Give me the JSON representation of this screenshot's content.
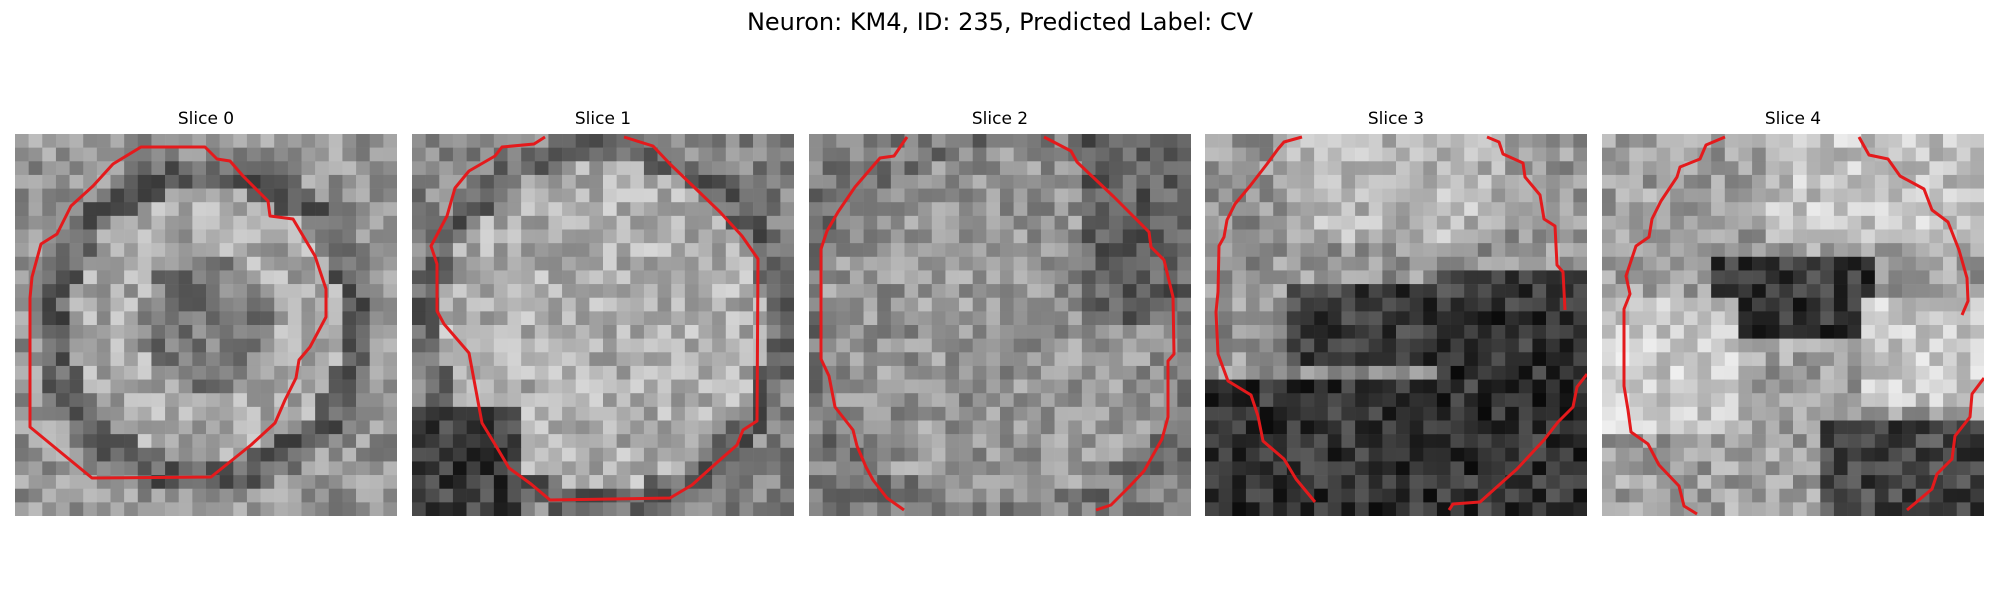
{
  "figure": {
    "title": "Neuron: KM4, ID: 235, Predicted Label: CV"
  },
  "slices": [
    {
      "title": "Slice 0",
      "contour_color": "#e41a1c"
    },
    {
      "title": "Slice 1",
      "contour_color": "#e41a1c"
    },
    {
      "title": "Slice 2",
      "contour_color": "#e41a1c"
    },
    {
      "title": "Slice 3",
      "contour_color": "#e41a1c"
    },
    {
      "title": "Slice 4",
      "contour_color": "#e41a1c"
    }
  ]
}
